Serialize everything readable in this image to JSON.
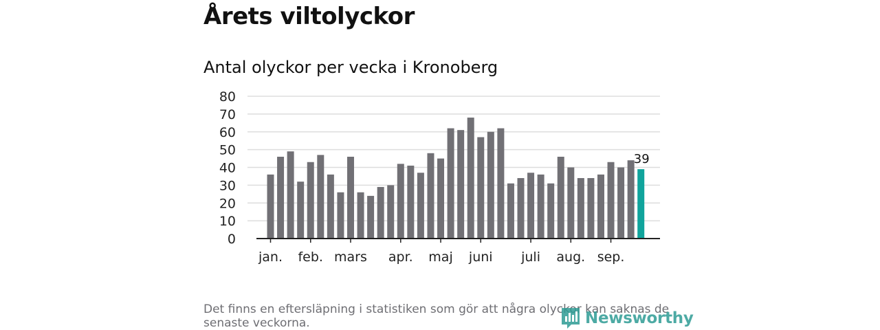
{
  "header": {
    "title": "Årets viltolyckor",
    "subtitle": "Antal olyckor per vecka i Kronoberg"
  },
  "footer": {
    "note": "Det finns en eftersläpning i statistiken som gör att några olyckor kan saknas de senaste veckorna.",
    "brand": "Newsworthy"
  },
  "colors": {
    "bar": "#717075",
    "highlight": "#10a49c",
    "grid": "#dddddd",
    "axis": "#222222"
  },
  "chart_data": {
    "type": "bar",
    "title": "Antal olyckor per vecka i Kronoberg",
    "xlabel": "",
    "ylabel": "",
    "ylim": [
      0,
      80
    ],
    "yticks": [
      0,
      10,
      20,
      30,
      40,
      50,
      60,
      70,
      80
    ],
    "grid": true,
    "values": [
      36,
      46,
      49,
      32,
      43,
      47,
      36,
      26,
      46,
      26,
      24,
      29,
      30,
      42,
      41,
      37,
      48,
      45,
      62,
      61,
      68,
      57,
      60,
      62,
      31,
      34,
      37,
      36,
      31,
      46,
      40,
      34,
      34,
      36,
      43,
      40,
      44,
      39
    ],
    "highlight_index": 37,
    "last_value_label": "39",
    "month_labels": [
      {
        "label": "jan.",
        "bar": 0
      },
      {
        "label": "feb.",
        "bar": 4
      },
      {
        "label": "mars",
        "bar": 8
      },
      {
        "label": "apr.",
        "bar": 13
      },
      {
        "label": "maj",
        "bar": 17
      },
      {
        "label": "juni",
        "bar": 21
      },
      {
        "label": "juli",
        "bar": 26
      },
      {
        "label": "aug.",
        "bar": 30
      },
      {
        "label": "sep.",
        "bar": 34
      }
    ]
  }
}
